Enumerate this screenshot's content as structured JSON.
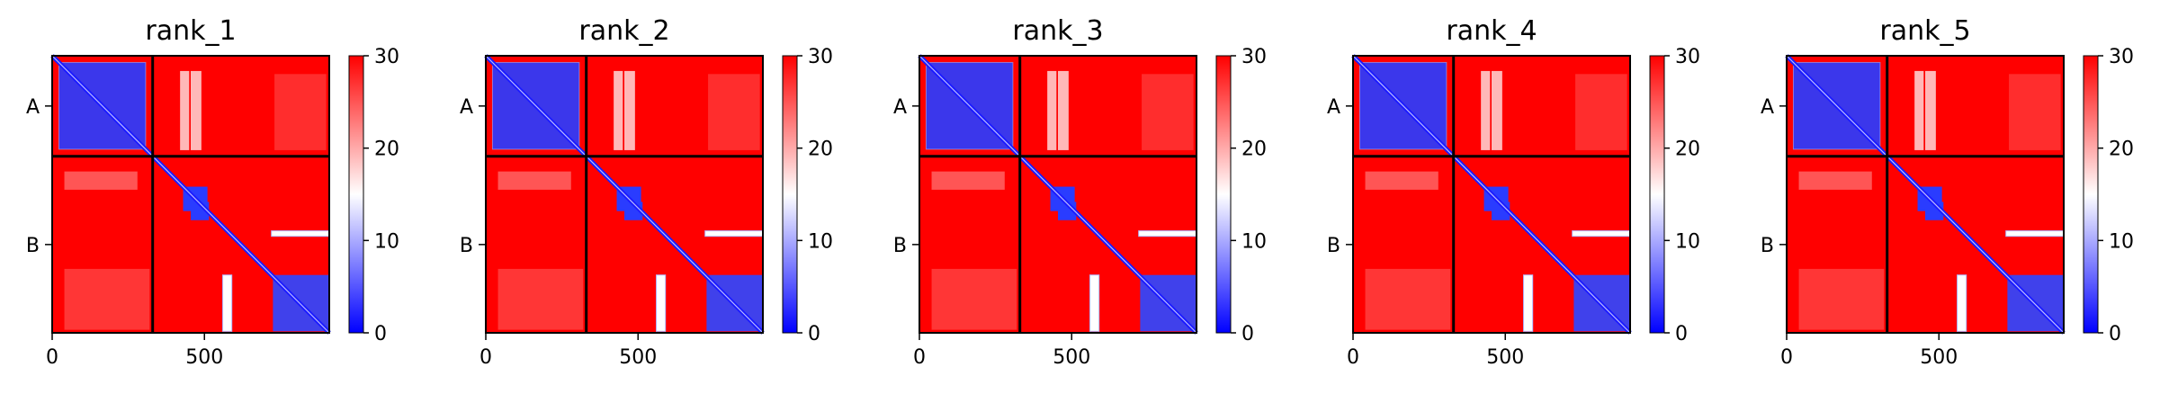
{
  "chart_data": {
    "type": "heatmap",
    "description_note": "",
    "shared": {
      "x_ticks": [
        0,
        500
      ],
      "y_tick_labels": [
        "A",
        "B"
      ],
      "segments": [
        {
          "label": "A",
          "start": 0,
          "end": 330
        },
        {
          "label": "B",
          "start": 330,
          "end": 910
        }
      ],
      "total_length": 910,
      "colorbar": {
        "vmin": 0,
        "vmax": 30,
        "ticks": [
          0,
          10,
          20,
          30
        ],
        "colors": [
          "#0000ff",
          "#ffffff",
          "#ff0000"
        ]
      }
    },
    "panels": [
      {
        "title": "rank_1"
      },
      {
        "title": "rank_2"
      },
      {
        "title": "rank_3"
      },
      {
        "title": "rank_4"
      },
      {
        "title": "rank_5"
      }
    ]
  }
}
